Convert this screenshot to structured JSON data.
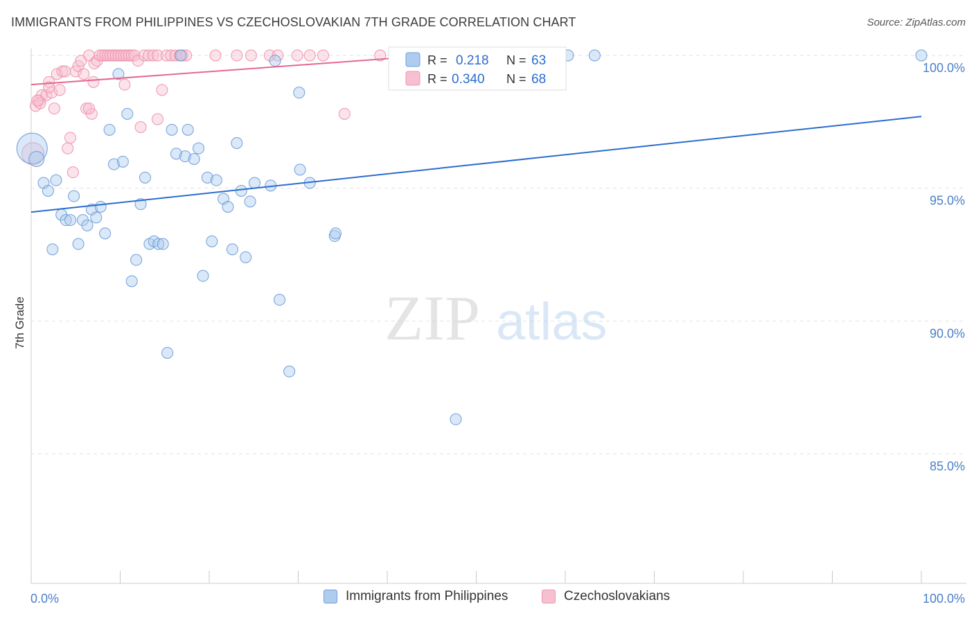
{
  "title": "IMMIGRANTS FROM PHILIPPINES VS CZECHOSLOVAKIAN 7TH GRADE CORRELATION CHART",
  "source": "Source: ZipAtlas.com",
  "watermark": {
    "zip": "ZIP",
    "atlas": "atlas"
  },
  "colors": {
    "blue_fill": "#aecbf0",
    "blue_stroke": "#6f9fd8",
    "blue_line": "#2a6ccf",
    "pink_fill": "#f7c0d0",
    "pink_stroke": "#ee94b0",
    "pink_line": "#e4688f",
    "tick_label": "#4a7fc8",
    "grid": "#e2e2e2"
  },
  "legend": {
    "blue": {
      "r_label": "R =",
      "r_value": "0.218",
      "n_label": "N =",
      "n_value": "63"
    },
    "pink": {
      "r_label": "R =",
      "r_value": "0.340",
      "n_label": "N =",
      "n_value": "68"
    }
  },
  "bottom_legend": [
    "Immigrants from Philippines",
    "Czechoslovakians"
  ],
  "chart_data": {
    "type": "scatter",
    "title": "IMMIGRANTS FROM PHILIPPINES VS CZECHOSLOVAKIAN 7TH GRADE CORRELATION CHART",
    "xlabel": "",
    "ylabel": "7th Grade",
    "xlim": [
      0,
      100
    ],
    "ylim": [
      80.5,
      100.5
    ],
    "x_tick_labels": [
      "0.0%",
      "100.0%"
    ],
    "y_ticks": [
      85,
      90,
      95,
      100
    ],
    "y_tick_labels": [
      "85.0%",
      "90.0%",
      "95.0%",
      "100.0%"
    ],
    "series": [
      {
        "name": "Immigrants from Philippines",
        "color": "#aecbf0",
        "R": 0.218,
        "N": 63,
        "trend": {
          "x": [
            0,
            100
          ],
          "y": [
            94.1,
            97.7
          ]
        },
        "points": [
          [
            0.1,
            96.5,
            22
          ],
          [
            0.6,
            96.1,
            11
          ],
          [
            1.4,
            95.2,
            8
          ],
          [
            1.9,
            94.9,
            8
          ],
          [
            2.8,
            95.3,
            8
          ],
          [
            3.4,
            94.0,
            8
          ],
          [
            3.9,
            93.8,
            8
          ],
          [
            4.4,
            93.8,
            8
          ],
          [
            2.4,
            92.7,
            8
          ],
          [
            4.8,
            94.7,
            8
          ],
          [
            5.3,
            92.9,
            8
          ],
          [
            5.8,
            93.8,
            8
          ],
          [
            6.3,
            93.6,
            8
          ],
          [
            6.8,
            94.2,
            8
          ],
          [
            7.3,
            93.9,
            8
          ],
          [
            7.8,
            94.3,
            8
          ],
          [
            8.3,
            93.3,
            8
          ],
          [
            8.8,
            97.2,
            8
          ],
          [
            9.3,
            95.9,
            8
          ],
          [
            9.8,
            99.3,
            8
          ],
          [
            10.3,
            96.0,
            8
          ],
          [
            10.8,
            97.8,
            8
          ],
          [
            11.3,
            91.5,
            8
          ],
          [
            11.8,
            92.3,
            8
          ],
          [
            12.3,
            94.4,
            8
          ],
          [
            12.8,
            95.4,
            8
          ],
          [
            13.3,
            92.9,
            8
          ],
          [
            13.8,
            93.0,
            8
          ],
          [
            14.3,
            92.9,
            8
          ],
          [
            14.8,
            92.9,
            8
          ],
          [
            15.3,
            88.8,
            8
          ],
          [
            15.8,
            97.2,
            8
          ],
          [
            16.3,
            96.3,
            8
          ],
          [
            16.8,
            100.0,
            8
          ],
          [
            17.3,
            96.2,
            8
          ],
          [
            17.6,
            97.2,
            8
          ],
          [
            18.3,
            96.1,
            8
          ],
          [
            18.8,
            96.5,
            8
          ],
          [
            19.3,
            91.7,
            8
          ],
          [
            19.8,
            95.4,
            8
          ],
          [
            20.3,
            93.0,
            8
          ],
          [
            20.8,
            95.3,
            8
          ],
          [
            21.6,
            94.6,
            8
          ],
          [
            22.1,
            94.3,
            8
          ],
          [
            22.6,
            92.7,
            8
          ],
          [
            23.1,
            96.7,
            8
          ],
          [
            23.6,
            94.9,
            8
          ],
          [
            24.1,
            92.4,
            8
          ],
          [
            24.6,
            94.5,
            8
          ],
          [
            25.1,
            95.2,
            8
          ],
          [
            26.9,
            95.1,
            8
          ],
          [
            27.4,
            99.8,
            8
          ],
          [
            27.9,
            90.8,
            8
          ],
          [
            29.0,
            88.1,
            8
          ],
          [
            30.1,
            98.6,
            8
          ],
          [
            30.2,
            95.7,
            8
          ],
          [
            31.3,
            95.2,
            8
          ],
          [
            34.1,
            93.2,
            8
          ],
          [
            34.2,
            93.3,
            8
          ],
          [
            47.7,
            86.3,
            8
          ],
          [
            60.3,
            100.0,
            8
          ],
          [
            63.3,
            100.0,
            8
          ],
          [
            100.0,
            100.0,
            8
          ]
        ]
      },
      {
        "name": "Czechoslovakians",
        "color": "#f7c0d0",
        "R": 0.34,
        "N": 68,
        "trend": {
          "x": [
            0,
            45
          ],
          "y": [
            98.9,
            100.0
          ]
        },
        "points": [
          [
            0.2,
            96.3,
            16
          ],
          [
            0.5,
            98.1,
            8
          ],
          [
            0.9,
            98.3,
            8
          ],
          [
            1.2,
            98.5,
            8
          ],
          [
            1.7,
            98.5,
            8
          ],
          [
            2.0,
            99.0,
            8
          ],
          [
            2.3,
            98.6,
            8
          ],
          [
            2.6,
            98.0,
            8
          ],
          [
            2.9,
            99.3,
            8
          ],
          [
            3.2,
            98.7,
            8
          ],
          [
            3.5,
            99.4,
            8
          ],
          [
            3.8,
            99.4,
            8
          ],
          [
            4.1,
            96.5,
            8
          ],
          [
            4.4,
            96.9,
            8
          ],
          [
            4.7,
            95.6,
            8
          ],
          [
            5.0,
            99.4,
            8
          ],
          [
            5.3,
            99.6,
            8
          ],
          [
            5.6,
            99.8,
            8
          ],
          [
            5.9,
            99.3,
            8
          ],
          [
            6.2,
            98.0,
            8
          ],
          [
            6.5,
            100.0,
            8
          ],
          [
            6.8,
            97.8,
            8
          ],
          [
            7.1,
            99.7,
            8
          ],
          [
            7.4,
            99.8,
            8
          ],
          [
            7.7,
            100.0,
            8
          ],
          [
            8.0,
            100.0,
            8
          ],
          [
            8.3,
            100.0,
            8
          ],
          [
            8.6,
            100.0,
            8
          ],
          [
            8.9,
            100.0,
            8
          ],
          [
            9.2,
            100.0,
            8
          ],
          [
            9.5,
            100.0,
            8
          ],
          [
            9.8,
            100.0,
            8
          ],
          [
            10.1,
            100.0,
            8
          ],
          [
            10.4,
            100.0,
            8
          ],
          [
            10.7,
            100.0,
            8
          ],
          [
            11.0,
            100.0,
            8
          ],
          [
            11.3,
            100.0,
            8
          ],
          [
            11.6,
            100.0,
            8
          ],
          [
            12.0,
            99.8,
            8
          ],
          [
            12.3,
            97.3,
            8
          ],
          [
            12.7,
            100.0,
            8
          ],
          [
            13.2,
            100.0,
            8
          ],
          [
            13.7,
            100.0,
            8
          ],
          [
            14.2,
            100.0,
            8
          ],
          [
            14.7,
            98.7,
            8
          ],
          [
            15.2,
            100.0,
            8
          ],
          [
            15.7,
            100.0,
            8
          ],
          [
            16.2,
            100.0,
            8
          ],
          [
            16.7,
            100.0,
            8
          ],
          [
            17.0,
            100.0,
            8
          ],
          [
            17.4,
            100.0,
            8
          ],
          [
            20.7,
            100.0,
            8
          ],
          [
            23.1,
            100.0,
            8
          ],
          [
            24.7,
            100.0,
            8
          ],
          [
            26.8,
            100.0,
            8
          ],
          [
            27.7,
            100.0,
            8
          ],
          [
            29.9,
            100.0,
            8
          ],
          [
            31.3,
            100.0,
            8
          ],
          [
            32.8,
            100.0,
            8
          ],
          [
            35.2,
            97.8,
            8
          ],
          [
            39.2,
            100.0,
            8
          ],
          [
            14.2,
            97.6,
            8
          ],
          [
            6.5,
            98.0,
            8
          ],
          [
            2.0,
            98.8,
            8
          ],
          [
            1.0,
            98.2,
            8
          ],
          [
            7.0,
            99.0,
            8
          ],
          [
            10.5,
            98.9,
            8
          ],
          [
            0.7,
            98.3,
            8
          ]
        ]
      }
    ]
  }
}
